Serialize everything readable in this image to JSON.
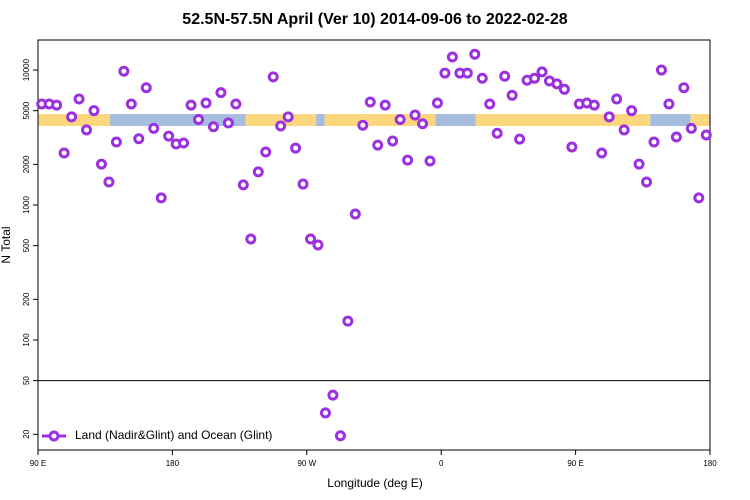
{
  "chart_data": {
    "type": "scatter",
    "title": "52.5N-57.5N April (Ver 10)   2014-09-06 to 2022-02-28",
    "x_label": "Longitude (deg E)",
    "y_label": "N Total",
    "xlim": [
      90,
      540
    ],
    "xticks": [
      {
        "value": 90,
        "label": "90 E"
      },
      {
        "value": 180,
        "label": "180"
      },
      {
        "value": 270,
        "label": "90 W"
      },
      {
        "value": 360,
        "label": "0"
      },
      {
        "value": 450,
        "label": "90 E"
      },
      {
        "value": 540,
        "label": "180"
      }
    ],
    "ylim": [
      15.3,
      16700
    ],
    "log_y": true,
    "yticks": [
      20,
      50,
      100,
      200,
      500,
      1000,
      2000,
      5000,
      10000
    ],
    "separator": 50,
    "legend": "bottom-left",
    "band": {
      "range": [
        3850,
        4720
      ],
      "segments": [
        {
          "start": 90,
          "end": 138,
          "color": "#fdd77d"
        },
        {
          "start": 138,
          "end": 229,
          "color": "#a7bde0"
        },
        {
          "start": 229,
          "end": 276,
          "color": "#fdd77d"
        },
        {
          "start": 276,
          "end": 282,
          "color": "#a7bde0"
        },
        {
          "start": 282,
          "end": 356,
          "color": "#fdd77d"
        },
        {
          "start": 356,
          "end": 383,
          "color": "#a7bde0"
        },
        {
          "start": 383,
          "end": 500,
          "color": "#fdd77d"
        },
        {
          "start": 500,
          "end": 527,
          "color": "#a7bde0"
        },
        {
          "start": 527,
          "end": 540,
          "color": "#fdd77d"
        }
      ]
    },
    "series": [
      {
        "name": "Land (Nadir&Glint) and Ocean (Glint)",
        "color": "#9b30e0",
        "x": [
          92.5,
          97.5,
          102.5,
          107.5,
          112.5,
          117.5,
          122.5,
          127.5,
          132.5,
          137.5,
          142.5,
          147.5,
          152.5,
          157.5,
          162.5,
          167.5,
          172.5,
          177.5,
          182.5,
          187.5,
          192.5,
          197.5,
          202.5,
          207.5,
          212.5,
          217.5,
          222.5,
          227.5,
          232.5,
          237.5,
          242.5,
          247.5,
          252.5,
          257.5,
          262.5,
          267.5,
          272.5,
          277.5,
          282.5,
          287.5,
          292.5,
          297.5,
          302.5,
          307.5,
          312.5,
          317.5,
          322.5,
          327.5,
          332.5,
          337.5,
          342.5,
          347.5,
          352.5,
          357.5,
          362.5,
          367.5,
          372.5,
          377.5,
          382.5,
          387.5,
          392.5,
          397.5,
          402.5,
          407.5,
          412.5,
          417.5,
          422.5,
          427.5,
          432.5,
          437.5,
          442.5,
          447.5,
          452.5,
          457.5,
          462.5,
          467.5,
          472.5,
          477.5,
          482.5,
          487.5,
          492.5,
          497.5,
          502.5,
          507.5,
          512.5,
          517.5,
          522.5,
          527.5,
          532.5,
          537.5
        ],
        "values": [
          5600,
          5600,
          5500,
          2430,
          4500,
          6100,
          3600,
          5000,
          2010,
          1480,
          2930,
          9800,
          5600,
          3100,
          7400,
          3700,
          1130,
          3240,
          2830,
          2880,
          5500,
          4300,
          5700,
          3800,
          6800,
          4050,
          5600,
          1410,
          560,
          1760,
          2470,
          8900,
          3850,
          4500,
          2640,
          1430,
          560,
          506,
          28.8,
          39,
          19.5,
          138,
          857,
          3900,
          5800,
          2780,
          5500,
          2980,
          4300,
          2150,
          4640,
          4000,
          2120,
          5700,
          9500,
          12500,
          9500,
          9500,
          13100,
          8700,
          5600,
          3400,
          9000,
          6500,
          3080,
          8400,
          8700,
          9700,
          8300,
          7900,
          7200,
          2690,
          5600,
          5700,
          5500,
          2430,
          4500,
          6100,
          3600,
          5000,
          2010,
          1480,
          2930,
          10000,
          5600,
          3190,
          7400,
          3700,
          1130,
          3300
        ]
      }
    ]
  }
}
